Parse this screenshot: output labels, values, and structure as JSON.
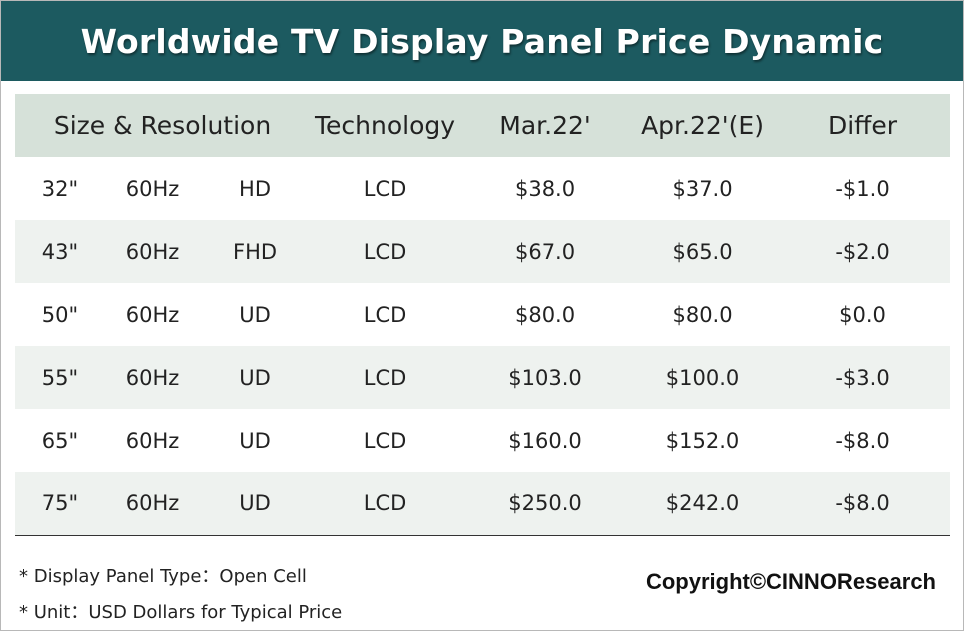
{
  "title": "Worldwide TV Display Panel Price Dynamic",
  "chart_data": {
    "type": "table",
    "title": "Worldwide TV Display Panel Price Dynamic",
    "columns": [
      "Size & Resolution",
      "Technology",
      "Mar.22'",
      "Apr.22'(E)",
      "Differ"
    ],
    "rows": [
      {
        "size": "32\"",
        "refresh": "60Hz",
        "resolution": "HD",
        "technology": "LCD",
        "mar": "$38.0",
        "apr": "$37.0",
        "differ": "-$1.0"
      },
      {
        "size": "43\"",
        "refresh": "60Hz",
        "resolution": "FHD",
        "technology": "LCD",
        "mar": "$67.0",
        "apr": "$65.0",
        "differ": "-$2.0"
      },
      {
        "size": "50\"",
        "refresh": "60Hz",
        "resolution": "UD",
        "technology": "LCD",
        "mar": "$80.0",
        "apr": "$80.0",
        "differ": "$0.0"
      },
      {
        "size": "55\"",
        "refresh": "60Hz",
        "resolution": "UD",
        "technology": "LCD",
        "mar": "$103.0",
        "apr": "$100.0",
        "differ": "-$3.0"
      },
      {
        "size": "65\"",
        "refresh": "60Hz",
        "resolution": "UD",
        "technology": "LCD",
        "mar": "$160.0",
        "apr": "$152.0",
        "differ": "-$8.0"
      },
      {
        "size": "75\"",
        "refresh": "60Hz",
        "resolution": "UD",
        "technology": "LCD",
        "mar": "$250.0",
        "apr": "$242.0",
        "differ": "-$8.0"
      }
    ]
  },
  "notes": [
    "* Display Panel Type：Open Cell",
    "* Unit：USD Dollars for Typical Price"
  ],
  "copyright": "Copyright©CINNOResearch",
  "colors": {
    "title_bg": "#1c5a60",
    "header_bg": "#d6e1d9",
    "stripe_bg": "#eef2ef"
  }
}
